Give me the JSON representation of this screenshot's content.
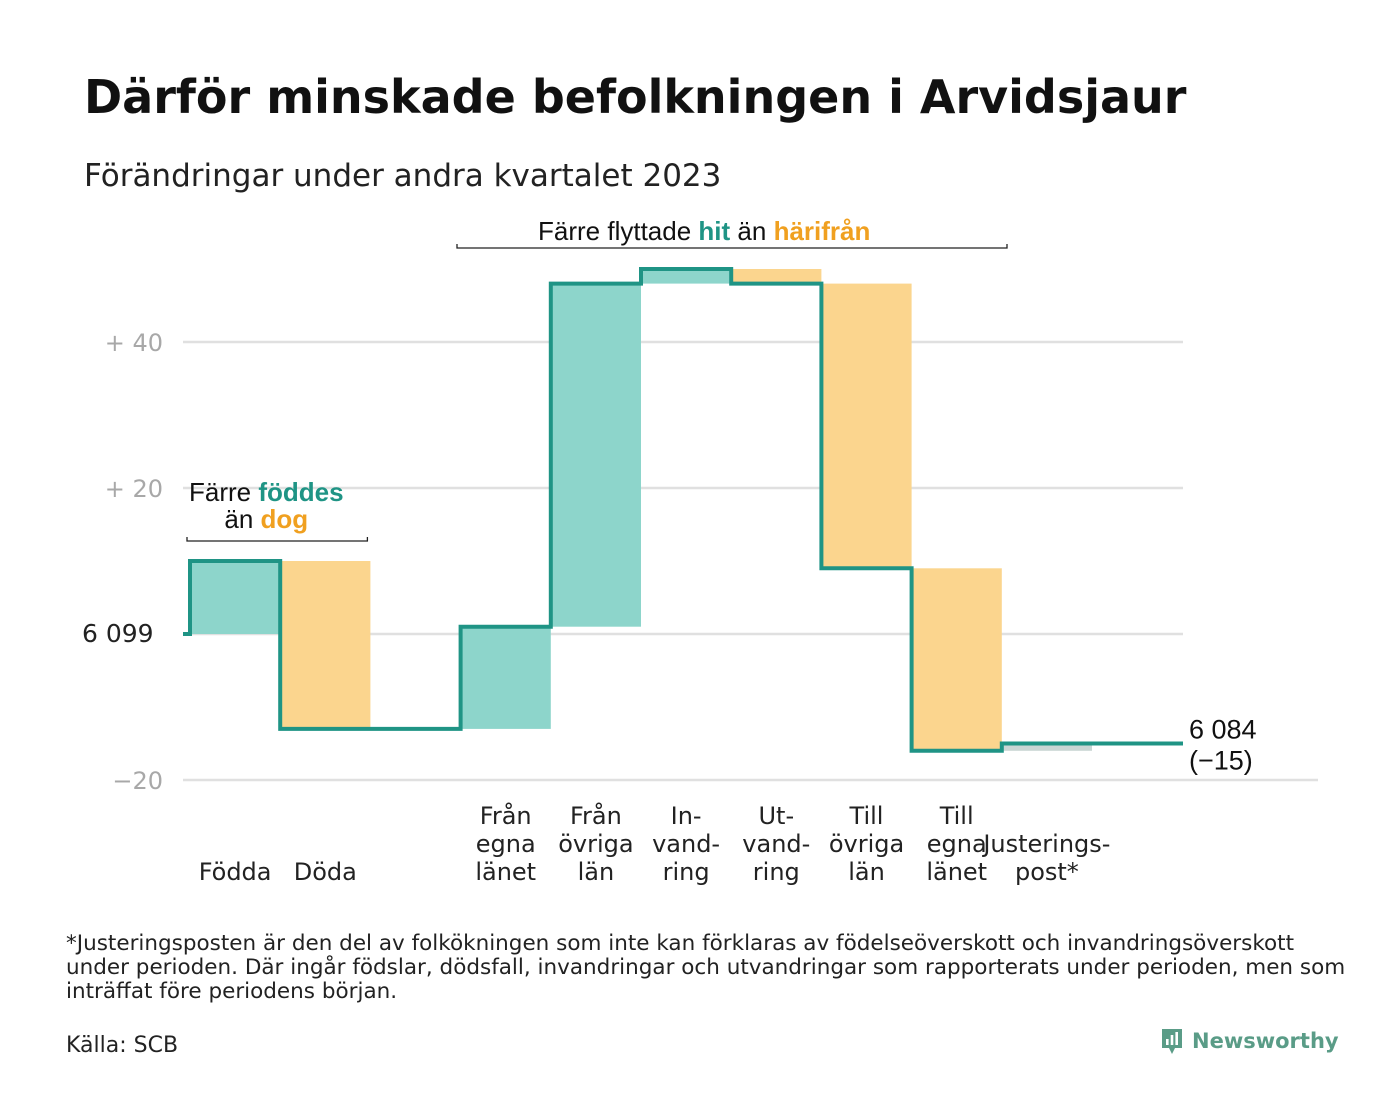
{
  "header": {
    "title": "Därför minskade befolkningen i Arvidsjaur",
    "subtitle": "Förändringar under andra kvartalet 2023"
  },
  "annotations": {
    "births": {
      "line1_prefix": "Färre",
      "line1_highlight": "föddes",
      "line2_prefix": "än",
      "line2_highlight": "dog"
    },
    "moves": {
      "prefix": "Färre flyttade",
      "highlight1": "hit",
      "middle": "än",
      "highlight2": "härifrån"
    }
  },
  "colors": {
    "inflow": "#8dd5cb",
    "outflow": "#fbd58e",
    "line": "#1f9485",
    "adjustment": "#c9d6d4",
    "grid": "#e0e0e0"
  },
  "chart_data": {
    "type": "waterfall",
    "start_value": 6099,
    "start_label": "6  099",
    "end_label": "6 084",
    "end_change_label": "(−15)",
    "y_ticks": [
      {
        "value": 40,
        "label": "+  40"
      },
      {
        "value": 20,
        "label": "+  20"
      },
      {
        "value": 0,
        "label": ""
      },
      {
        "value": -20,
        "label": "−20"
      }
    ],
    "ylim": [
      -20,
      50
    ],
    "steps": [
      {
        "label_lines": [
          "Födda"
        ],
        "change": 10,
        "kind": "inflow"
      },
      {
        "label_lines": [
          "Döda"
        ],
        "change": -23,
        "kind": "outflow"
      },
      {
        "label_lines": [],
        "change": 0,
        "kind": "gap"
      },
      {
        "label_lines": [
          "Från",
          "egna",
          "länet"
        ],
        "change": 14,
        "kind": "inflow"
      },
      {
        "label_lines": [
          "Från",
          "övriga",
          "län"
        ],
        "change": 47,
        "kind": "inflow"
      },
      {
        "label_lines": [
          "In-",
          "vand-",
          "ring"
        ],
        "change": 2,
        "kind": "inflow"
      },
      {
        "label_lines": [
          "Ut-",
          "vand-",
          "ring"
        ],
        "change": -2,
        "kind": "outflow"
      },
      {
        "label_lines": [
          "Till",
          "övriga",
          "län"
        ],
        "change": -39,
        "kind": "outflow"
      },
      {
        "label_lines": [
          "Till",
          "egna",
          "länet"
        ],
        "change": -25,
        "kind": "outflow"
      },
      {
        "label_lines": [
          "Justerings-",
          "post*"
        ],
        "change": 1,
        "kind": "adjustment"
      }
    ]
  },
  "footer": {
    "note": "*Justeringsposten är den del av folkökningen som inte kan förklaras av födelseöverskott och invandringsöverskott under perioden. Där ingår födslar, dödsfall, invandringar och utvandringar som rapporterats under perioden, men som inträffat före periodens början.",
    "source": "Källa: SCB",
    "brand": "Newsworthy"
  }
}
